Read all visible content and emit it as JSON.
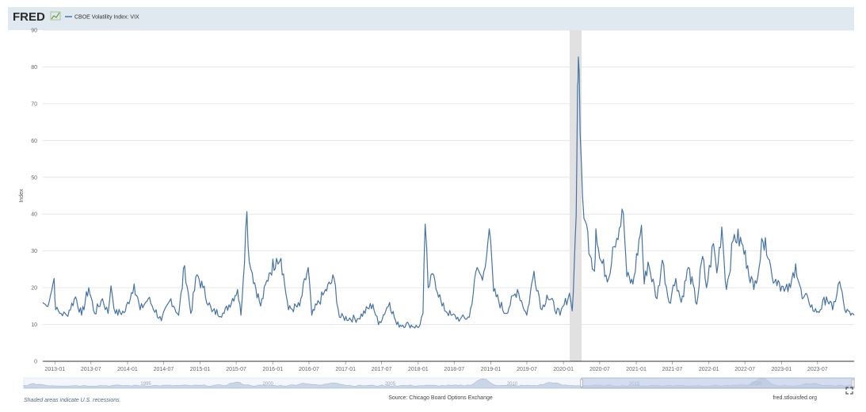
{
  "header": {
    "logo": "FRED",
    "logo_icon": "fred-chart-line-icon",
    "legend_label": "CBOE Volatility Index: VIX"
  },
  "footer": {
    "recession_note": "Shaded areas indicate U.S. recessions.",
    "source": "Source: Chicago Board Options Exchange",
    "site": "fred.stlouisfed.org",
    "expand_icon": "fullscreen-expand-icon"
  },
  "navigator": {
    "labels": [
      "1995",
      "2000",
      "2005",
      "2010",
      "2015",
      "2020"
    ],
    "window_start": "2012-11",
    "window_end": "2024-01"
  },
  "colors": {
    "series": "#4572a7",
    "recession": "#e1e1e1",
    "header_bg": "#e1e9f0",
    "navigator_fill": "#c9d6e8",
    "navigator_window": "#b9c9e2"
  },
  "chart_data": {
    "type": "line",
    "title": "",
    "xlabel": "",
    "ylabel": "Index",
    "ylim": [
      0,
      90
    ],
    "yticks": [
      0,
      10,
      20,
      30,
      40,
      50,
      60,
      70,
      80,
      90
    ],
    "xlim": [
      "2012-11",
      "2024-01"
    ],
    "xticks": [
      "2013-01",
      "2013-07",
      "2014-01",
      "2014-07",
      "2015-01",
      "2015-07",
      "2016-01",
      "2016-07",
      "2017-01",
      "2017-07",
      "2018-01",
      "2018-07",
      "2019-01",
      "2019-07",
      "2020-01",
      "2020-07",
      "2021-01",
      "2021-07",
      "2022-01",
      "2022-07",
      "2023-01",
      "2023-07"
    ],
    "grid": "horizontal",
    "legend": "top-left",
    "recessions": [
      {
        "start": "2020-02",
        "end": "2020-04"
      }
    ],
    "series": [
      {
        "name": "CBOE Volatility Index: VIX",
        "points": [
          [
            "2012-11-01",
            16
          ],
          [
            "2012-11-20",
            15
          ],
          [
            "2012-12-10",
            18
          ],
          [
            "2012-12-28",
            22.5
          ],
          [
            "2013-01-05",
            14
          ],
          [
            "2013-02-01",
            13
          ],
          [
            "2013-03-01",
            12.5
          ],
          [
            "2013-04-15",
            17.5
          ],
          [
            "2013-05-15",
            12.5
          ],
          [
            "2013-06-20",
            20
          ],
          [
            "2013-07-20",
            13
          ],
          [
            "2013-08-28",
            17
          ],
          [
            "2013-09-25",
            13
          ],
          [
            "2013-10-10",
            20.5
          ],
          [
            "2013-11-01",
            13
          ],
          [
            "2013-12-20",
            13.5
          ],
          [
            "2014-02-03",
            21
          ],
          [
            "2014-03-05",
            14
          ],
          [
            "2014-04-15",
            17
          ],
          [
            "2014-06-20",
            11
          ],
          [
            "2014-08-07",
            17
          ],
          [
            "2014-09-15",
            12.5
          ],
          [
            "2014-10-15",
            26
          ],
          [
            "2014-11-15",
            13
          ],
          [
            "2014-12-16",
            23.5
          ],
          [
            "2015-01-15",
            20
          ],
          [
            "2015-03-01",
            13.5
          ],
          [
            "2015-05-01",
            13
          ],
          [
            "2015-07-08",
            19.5
          ],
          [
            "2015-07-25",
            12.5
          ],
          [
            "2015-08-24",
            40.7
          ],
          [
            "2015-09-05",
            27
          ],
          [
            "2015-09-20",
            24
          ],
          [
            "2015-11-01",
            15
          ],
          [
            "2015-12-14",
            24
          ],
          [
            "2016-01-20",
            28
          ],
          [
            "2016-02-11",
            28
          ],
          [
            "2016-03-20",
            14
          ],
          [
            "2016-05-15",
            15
          ],
          [
            "2016-06-27",
            25.5
          ],
          [
            "2016-07-15",
            12.5
          ],
          [
            "2016-09-09",
            18
          ],
          [
            "2016-11-04",
            22.5
          ],
          [
            "2016-12-01",
            12
          ],
          [
            "2017-03-01",
            11.5
          ],
          [
            "2017-05-18",
            15.5
          ],
          [
            "2017-06-15",
            10
          ],
          [
            "2017-08-10",
            16
          ],
          [
            "2017-09-15",
            10
          ],
          [
            "2017-11-15",
            10
          ],
          [
            "2018-01-03",
            9.2
          ],
          [
            "2018-01-25",
            13
          ],
          [
            "2018-02-05",
            37.3
          ],
          [
            "2018-02-20",
            20
          ],
          [
            "2018-03-20",
            23.5
          ],
          [
            "2018-05-01",
            15
          ],
          [
            "2018-06-15",
            12.5
          ],
          [
            "2018-08-01",
            11.5
          ],
          [
            "2018-09-15",
            12
          ],
          [
            "2018-10-24",
            25.5
          ],
          [
            "2018-11-20",
            22
          ],
          [
            "2018-12-24",
            36
          ],
          [
            "2019-01-15",
            19
          ],
          [
            "2019-03-15",
            13
          ],
          [
            "2019-05-15",
            19.5
          ],
          [
            "2019-07-01",
            12.5
          ],
          [
            "2019-08-06",
            24.5
          ],
          [
            "2019-09-15",
            14
          ],
          [
            "2019-10-10",
            18
          ],
          [
            "2019-12-15",
            12.5
          ],
          [
            "2020-01-31",
            18.5
          ],
          [
            "2020-02-14",
            13.7
          ],
          [
            "2020-02-25",
            27
          ],
          [
            "2020-03-05",
            39.5
          ],
          [
            "2020-03-12",
            75
          ],
          [
            "2020-03-16",
            82.7
          ],
          [
            "2020-03-25",
            62
          ],
          [
            "2020-04-06",
            45
          ],
          [
            "2020-04-20",
            38
          ],
          [
            "2020-05-20",
            28
          ],
          [
            "2020-06-05",
            24.5
          ],
          [
            "2020-06-12",
            36
          ],
          [
            "2020-07-01",
            28
          ],
          [
            "2020-08-15",
            22.5
          ],
          [
            "2020-09-05",
            31
          ],
          [
            "2020-10-28",
            40.3
          ],
          [
            "2020-11-15",
            23
          ],
          [
            "2020-12-15",
            21
          ],
          [
            "2021-01-27",
            37
          ],
          [
            "2021-02-10",
            21
          ],
          [
            "2021-03-01",
            27
          ],
          [
            "2021-04-15",
            17
          ],
          [
            "2021-05-12",
            27.5
          ],
          [
            "2021-06-15",
            16
          ],
          [
            "2021-07-19",
            22.5
          ],
          [
            "2021-08-15",
            16
          ],
          [
            "2021-09-20",
            25.5
          ],
          [
            "2021-11-01",
            15.5
          ],
          [
            "2021-11-30",
            28.5
          ],
          [
            "2021-12-20",
            20
          ],
          [
            "2022-01-24",
            32
          ],
          [
            "2022-02-10",
            24
          ],
          [
            "2022-03-07",
            36.5
          ],
          [
            "2022-03-30",
            19.5
          ],
          [
            "2022-05-09",
            34.5
          ],
          [
            "2022-06-15",
            32
          ],
          [
            "2022-07-15",
            26
          ],
          [
            "2022-08-15",
            19.5
          ],
          [
            "2022-09-30",
            32.5
          ],
          [
            "2022-10-12",
            33.6
          ],
          [
            "2022-11-15",
            23
          ],
          [
            "2022-12-15",
            22
          ],
          [
            "2023-01-15",
            19
          ],
          [
            "2023-02-15",
            20
          ],
          [
            "2023-03-13",
            26.5
          ],
          [
            "2023-04-15",
            17
          ],
          [
            "2023-05-15",
            17
          ],
          [
            "2023-06-15",
            13.5
          ],
          [
            "2023-07-15",
            14
          ],
          [
            "2023-08-15",
            17.5
          ],
          [
            "2023-09-15",
            14
          ],
          [
            "2023-10-20",
            21.7
          ],
          [
            "2023-11-15",
            14
          ],
          [
            "2023-12-15",
            12.5
          ],
          [
            "2024-01-01",
            12.5
          ]
        ]
      }
    ]
  }
}
